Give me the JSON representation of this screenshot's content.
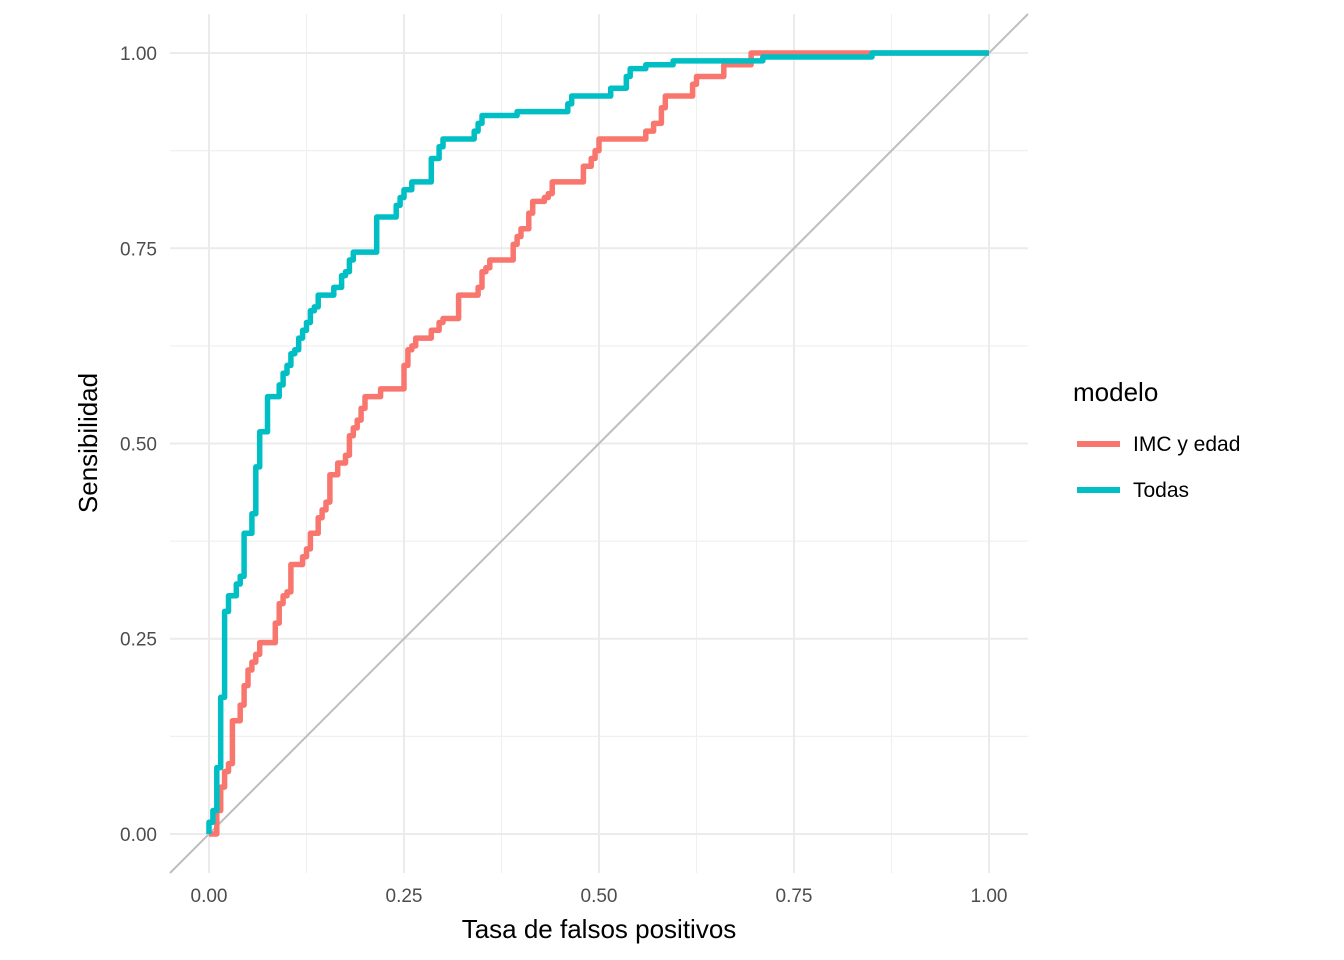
{
  "chart_data": {
    "type": "line",
    "title": "",
    "xlabel": "Tasa de falsos positivos",
    "ylabel": "Sensibilidad",
    "xlim": [
      -0.05,
      1.05
    ],
    "ylim": [
      -0.05,
      1.05
    ],
    "x_ticks": [
      "0.00",
      "0.25",
      "0.50",
      "0.75",
      "1.00"
    ],
    "y_ticks": [
      "0.00",
      "0.25",
      "0.50",
      "0.75",
      "1.00"
    ],
    "x_tick_values": [
      0,
      0.25,
      0.5,
      0.75,
      1
    ],
    "y_tick_values": [
      0,
      0.25,
      0.5,
      0.75,
      1
    ],
    "grid": true,
    "legend": {
      "title": "modelo",
      "position": "right"
    },
    "reference_line": {
      "from": [
        -0.05,
        -0.05
      ],
      "to": [
        1.05,
        1.05
      ],
      "color": "#bebebe"
    },
    "series": [
      {
        "name": "IMC y edad",
        "color": "#F8766D",
        "step": true,
        "points": [
          [
            0.0,
            0.0
          ],
          [
            0.01,
            0.0
          ],
          [
            0.01,
            0.03
          ],
          [
            0.015,
            0.03
          ],
          [
            0.015,
            0.06
          ],
          [
            0.02,
            0.06
          ],
          [
            0.02,
            0.08
          ],
          [
            0.025,
            0.08
          ],
          [
            0.025,
            0.09
          ],
          [
            0.03,
            0.09
          ],
          [
            0.03,
            0.145
          ],
          [
            0.04,
            0.145
          ],
          [
            0.04,
            0.165
          ],
          [
            0.045,
            0.165
          ],
          [
            0.045,
            0.19
          ],
          [
            0.05,
            0.19
          ],
          [
            0.05,
            0.21
          ],
          [
            0.055,
            0.21
          ],
          [
            0.055,
            0.22
          ],
          [
            0.06,
            0.22
          ],
          [
            0.06,
            0.23
          ],
          [
            0.065,
            0.23
          ],
          [
            0.065,
            0.245
          ],
          [
            0.085,
            0.245
          ],
          [
            0.085,
            0.27
          ],
          [
            0.09,
            0.27
          ],
          [
            0.09,
            0.295
          ],
          [
            0.095,
            0.295
          ],
          [
            0.095,
            0.305
          ],
          [
            0.1,
            0.305
          ],
          [
            0.1,
            0.31
          ],
          [
            0.105,
            0.31
          ],
          [
            0.105,
            0.345
          ],
          [
            0.12,
            0.345
          ],
          [
            0.12,
            0.355
          ],
          [
            0.125,
            0.355
          ],
          [
            0.125,
            0.365
          ],
          [
            0.13,
            0.365
          ],
          [
            0.13,
            0.385
          ],
          [
            0.14,
            0.385
          ],
          [
            0.14,
            0.405
          ],
          [
            0.145,
            0.405
          ],
          [
            0.145,
            0.415
          ],
          [
            0.15,
            0.415
          ],
          [
            0.15,
            0.425
          ],
          [
            0.155,
            0.425
          ],
          [
            0.155,
            0.46
          ],
          [
            0.165,
            0.46
          ],
          [
            0.165,
            0.475
          ],
          [
            0.175,
            0.475
          ],
          [
            0.175,
            0.485
          ],
          [
            0.18,
            0.485
          ],
          [
            0.18,
            0.51
          ],
          [
            0.185,
            0.51
          ],
          [
            0.185,
            0.52
          ],
          [
            0.19,
            0.52
          ],
          [
            0.19,
            0.53
          ],
          [
            0.195,
            0.53
          ],
          [
            0.195,
            0.545
          ],
          [
            0.2,
            0.545
          ],
          [
            0.2,
            0.56
          ],
          [
            0.22,
            0.56
          ],
          [
            0.22,
            0.57
          ],
          [
            0.25,
            0.57
          ],
          [
            0.25,
            0.6
          ],
          [
            0.255,
            0.6
          ],
          [
            0.255,
            0.62
          ],
          [
            0.26,
            0.62
          ],
          [
            0.26,
            0.625
          ],
          [
            0.265,
            0.625
          ],
          [
            0.265,
            0.635
          ],
          [
            0.285,
            0.635
          ],
          [
            0.285,
            0.645
          ],
          [
            0.295,
            0.645
          ],
          [
            0.295,
            0.655
          ],
          [
            0.3,
            0.655
          ],
          [
            0.3,
            0.66
          ],
          [
            0.32,
            0.66
          ],
          [
            0.32,
            0.69
          ],
          [
            0.345,
            0.69
          ],
          [
            0.345,
            0.7
          ],
          [
            0.35,
            0.7
          ],
          [
            0.35,
            0.72
          ],
          [
            0.355,
            0.72
          ],
          [
            0.355,
            0.725
          ],
          [
            0.36,
            0.725
          ],
          [
            0.36,
            0.735
          ],
          [
            0.39,
            0.735
          ],
          [
            0.39,
            0.755
          ],
          [
            0.395,
            0.755
          ],
          [
            0.395,
            0.765
          ],
          [
            0.4,
            0.765
          ],
          [
            0.4,
            0.775
          ],
          [
            0.41,
            0.775
          ],
          [
            0.41,
            0.795
          ],
          [
            0.415,
            0.795
          ],
          [
            0.415,
            0.81
          ],
          [
            0.43,
            0.81
          ],
          [
            0.43,
            0.815
          ],
          [
            0.435,
            0.815
          ],
          [
            0.435,
            0.82
          ],
          [
            0.44,
            0.82
          ],
          [
            0.44,
            0.835
          ],
          [
            0.48,
            0.835
          ],
          [
            0.48,
            0.855
          ],
          [
            0.49,
            0.855
          ],
          [
            0.49,
            0.865
          ],
          [
            0.495,
            0.865
          ],
          [
            0.495,
            0.875
          ],
          [
            0.5,
            0.875
          ],
          [
            0.5,
            0.89
          ],
          [
            0.56,
            0.89
          ],
          [
            0.56,
            0.9
          ],
          [
            0.57,
            0.9
          ],
          [
            0.57,
            0.91
          ],
          [
            0.58,
            0.91
          ],
          [
            0.58,
            0.93
          ],
          [
            0.585,
            0.93
          ],
          [
            0.585,
            0.945
          ],
          [
            0.62,
            0.945
          ],
          [
            0.62,
            0.96
          ],
          [
            0.625,
            0.96
          ],
          [
            0.625,
            0.97
          ],
          [
            0.66,
            0.97
          ],
          [
            0.66,
            0.985
          ],
          [
            0.695,
            0.985
          ],
          [
            0.695,
            1.0
          ],
          [
            0.85,
            1.0
          ],
          [
            1.0,
            1.0
          ]
        ]
      },
      {
        "name": "Todas",
        "color": "#00BFC4",
        "step": true,
        "points": [
          [
            0.0,
            0.0
          ],
          [
            0.0,
            0.015
          ],
          [
            0.005,
            0.015
          ],
          [
            0.005,
            0.03
          ],
          [
            0.01,
            0.03
          ],
          [
            0.01,
            0.085
          ],
          [
            0.015,
            0.085
          ],
          [
            0.015,
            0.175
          ],
          [
            0.02,
            0.175
          ],
          [
            0.02,
            0.285
          ],
          [
            0.025,
            0.285
          ],
          [
            0.025,
            0.305
          ],
          [
            0.035,
            0.305
          ],
          [
            0.035,
            0.32
          ],
          [
            0.04,
            0.32
          ],
          [
            0.04,
            0.33
          ],
          [
            0.045,
            0.33
          ],
          [
            0.045,
            0.385
          ],
          [
            0.055,
            0.385
          ],
          [
            0.055,
            0.41
          ],
          [
            0.06,
            0.41
          ],
          [
            0.06,
            0.47
          ],
          [
            0.065,
            0.47
          ],
          [
            0.065,
            0.515
          ],
          [
            0.075,
            0.515
          ],
          [
            0.075,
            0.56
          ],
          [
            0.09,
            0.56
          ],
          [
            0.09,
            0.575
          ],
          [
            0.095,
            0.575
          ],
          [
            0.095,
            0.59
          ],
          [
            0.1,
            0.59
          ],
          [
            0.1,
            0.6
          ],
          [
            0.105,
            0.6
          ],
          [
            0.105,
            0.615
          ],
          [
            0.11,
            0.615
          ],
          [
            0.11,
            0.62
          ],
          [
            0.115,
            0.62
          ],
          [
            0.115,
            0.635
          ],
          [
            0.12,
            0.635
          ],
          [
            0.12,
            0.645
          ],
          [
            0.125,
            0.645
          ],
          [
            0.125,
            0.655
          ],
          [
            0.13,
            0.655
          ],
          [
            0.13,
            0.67
          ],
          [
            0.135,
            0.67
          ],
          [
            0.135,
            0.675
          ],
          [
            0.14,
            0.675
          ],
          [
            0.14,
            0.69
          ],
          [
            0.16,
            0.69
          ],
          [
            0.16,
            0.7
          ],
          [
            0.17,
            0.7
          ],
          [
            0.17,
            0.715
          ],
          [
            0.175,
            0.715
          ],
          [
            0.175,
            0.72
          ],
          [
            0.18,
            0.72
          ],
          [
            0.18,
            0.735
          ],
          [
            0.185,
            0.735
          ],
          [
            0.185,
            0.745
          ],
          [
            0.215,
            0.745
          ],
          [
            0.215,
            0.79
          ],
          [
            0.24,
            0.79
          ],
          [
            0.24,
            0.805
          ],
          [
            0.245,
            0.805
          ],
          [
            0.245,
            0.815
          ],
          [
            0.25,
            0.815
          ],
          [
            0.25,
            0.825
          ],
          [
            0.26,
            0.825
          ],
          [
            0.26,
            0.835
          ],
          [
            0.285,
            0.835
          ],
          [
            0.285,
            0.865
          ],
          [
            0.295,
            0.865
          ],
          [
            0.295,
            0.88
          ],
          [
            0.3,
            0.88
          ],
          [
            0.3,
            0.89
          ],
          [
            0.34,
            0.89
          ],
          [
            0.34,
            0.9
          ],
          [
            0.345,
            0.9
          ],
          [
            0.345,
            0.91
          ],
          [
            0.35,
            0.91
          ],
          [
            0.35,
            0.92
          ],
          [
            0.395,
            0.92
          ],
          [
            0.395,
            0.925
          ],
          [
            0.46,
            0.925
          ],
          [
            0.46,
            0.935
          ],
          [
            0.465,
            0.935
          ],
          [
            0.465,
            0.945
          ],
          [
            0.515,
            0.945
          ],
          [
            0.515,
            0.955
          ],
          [
            0.535,
            0.955
          ],
          [
            0.535,
            0.97
          ],
          [
            0.54,
            0.97
          ],
          [
            0.54,
            0.98
          ],
          [
            0.56,
            0.98
          ],
          [
            0.56,
            0.985
          ],
          [
            0.595,
            0.985
          ],
          [
            0.595,
            0.99
          ],
          [
            0.71,
            0.99
          ],
          [
            0.71,
            0.995
          ],
          [
            0.85,
            0.995
          ],
          [
            0.85,
            1.0
          ],
          [
            1.0,
            1.0
          ]
        ]
      }
    ]
  }
}
